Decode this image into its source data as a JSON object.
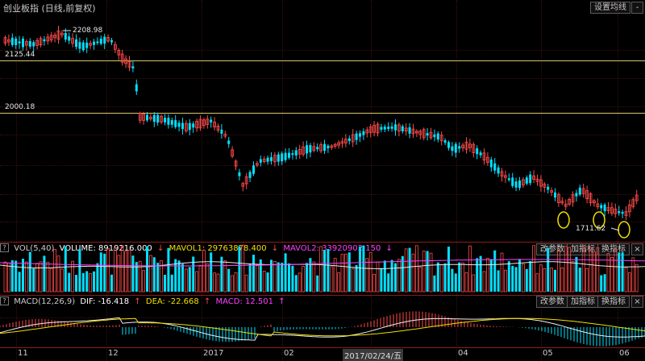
{
  "header": {
    "title": "创业板指",
    "subtitle": "(日线,前复权)",
    "settings_button": "设置均线",
    "minimize_label": "-",
    "restore_label": "□"
  },
  "price_pane": {
    "levels": [
      {
        "label": "2125.44",
        "value": 2125.44
      },
      {
        "label": "2000.18",
        "value": 2000.18
      }
    ],
    "annotations": {
      "high": "2208.98",
      "low": "1711.62"
    },
    "highlight_color": "#f0e000"
  },
  "volume_bar": {
    "name": "VOL(5,40)",
    "volume": "VOLUME: 8919216.000",
    "mavol1": "MAVOL1: 29763878.400",
    "mavol2": "MAVOL2: 33920902.150",
    "buttons": [
      "改参数",
      "加指标",
      "换指标"
    ]
  },
  "macd_bar": {
    "name": "MACD(12,26,9)",
    "dif": "DIF: -16.418",
    "dea": "DEA: -22.668",
    "macd": "MACD: 12.501",
    "buttons": [
      "改参数",
      "加指标",
      "换指标"
    ]
  },
  "x_axis": {
    "labels": [
      "11",
      "12",
      "2017",
      "02",
      "2017/02/24/五",
      "04",
      "05",
      "06"
    ]
  },
  "colors": {
    "up": "#ff4a4a",
    "down": "#00e0ff",
    "mavol1": "#e8e8e8",
    "mavol2": "#ff40ff",
    "dif": "#f0f0f0",
    "dea": "#f0e000",
    "grid": "#3a1010"
  }
}
